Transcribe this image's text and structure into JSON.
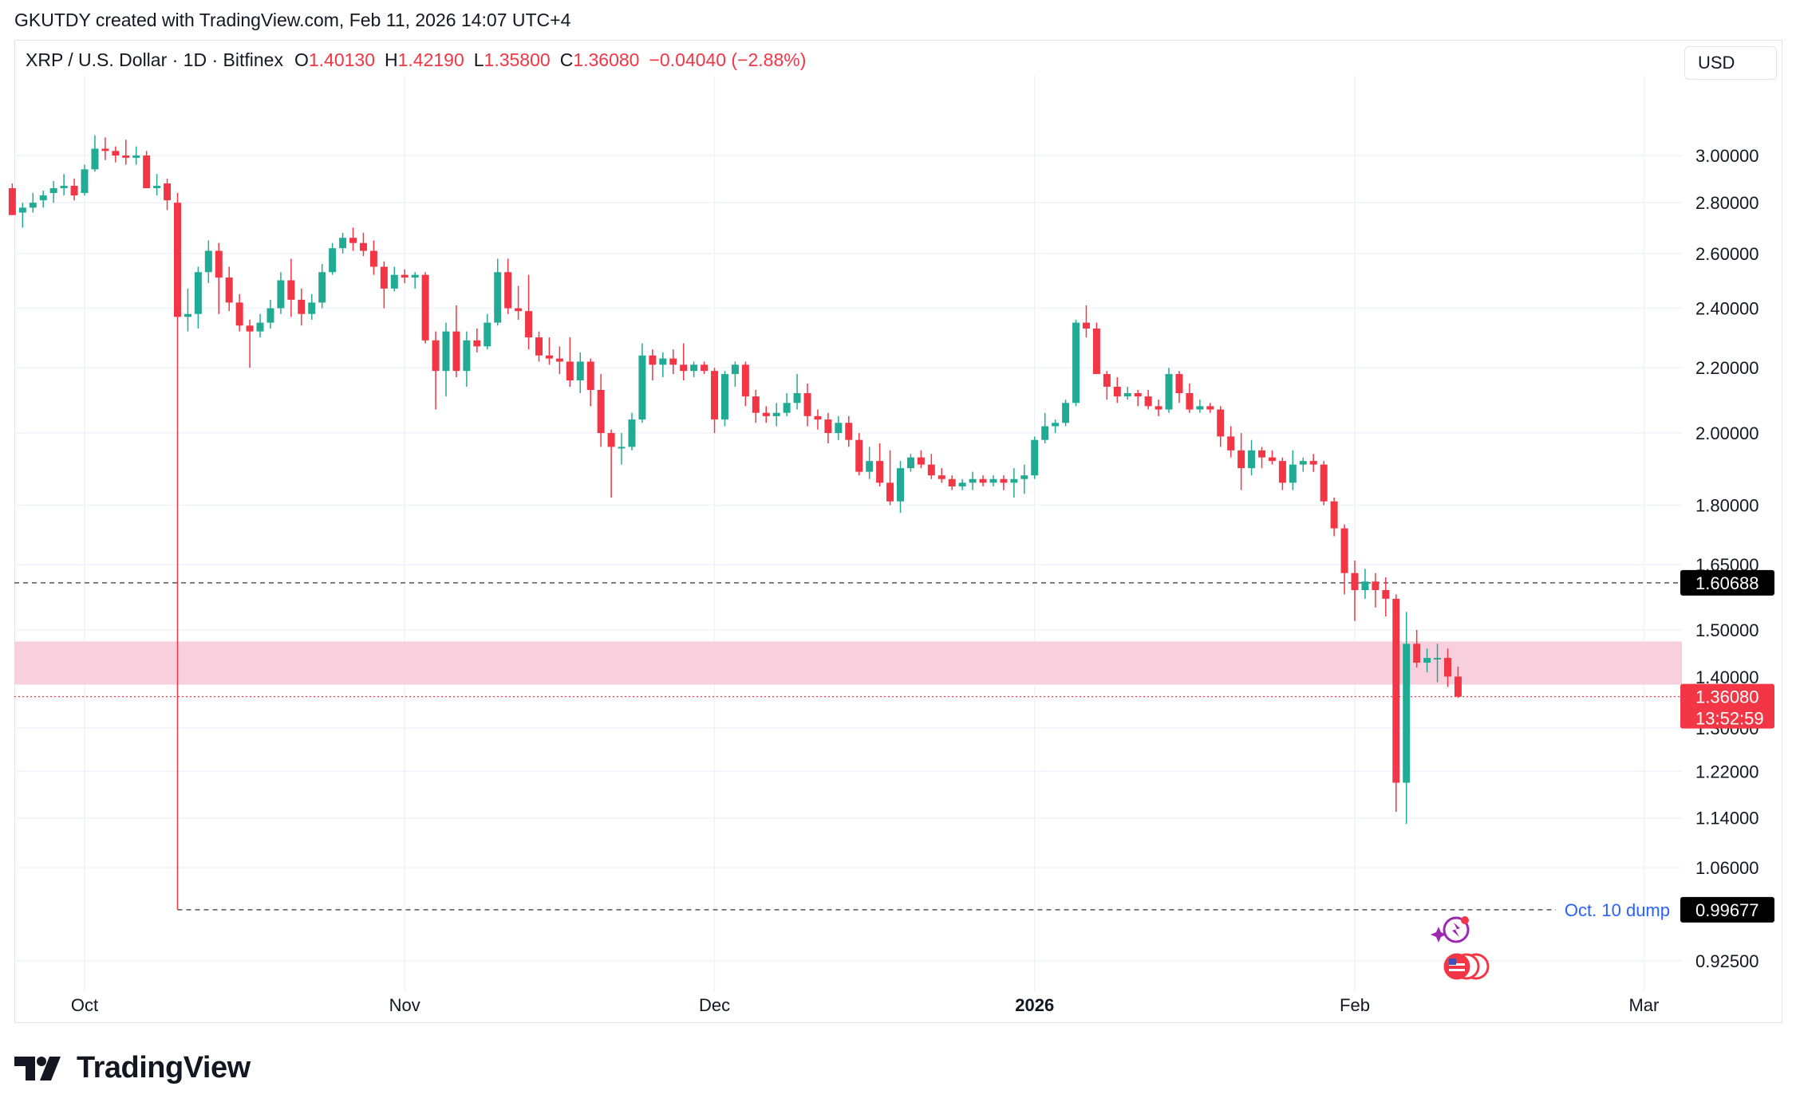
{
  "header": {
    "text": "GKUTDY created with TradingView.com, Feb 11, 2026 14:07 UTC+4"
  },
  "legend": {
    "symbol": "XRP / U.S. Dollar · 1D · Bitfinex",
    "open_label": "O",
    "open": "1.40130",
    "high_label": "H",
    "high": "1.42190",
    "low_label": "L",
    "low": "1.35800",
    "close_label": "C",
    "close": "1.36080",
    "change": "−0.04040 (−2.88%)"
  },
  "currency_button": "USD",
  "brand": {
    "name": "TradingView",
    "logo_icon": "tradingview-logo-icon"
  },
  "events_icons": [
    "sparkle-event-icon",
    "us-flag-economic-events-icon"
  ],
  "colors": {
    "up": "#22ab94",
    "down": "#f23645",
    "zone": "#f8cfdd",
    "grid": "#f0f3fa",
    "dashed": "#555555",
    "annotation": "#2962ff"
  },
  "chart_data": {
    "type": "candlestick",
    "scale": "log",
    "interval": "1D",
    "x_axis_labels": [
      "Oct",
      "Nov",
      "Dec",
      "2026",
      "Feb",
      "Mar"
    ],
    "y_axis_labels": [
      "3.00000",
      "2.80000",
      "2.60000",
      "2.40000",
      "2.20000",
      "2.00000",
      "1.80000",
      "1.65000",
      "1.50000",
      "1.40000",
      "1.30000",
      "1.22000",
      "1.14000",
      "1.06000",
      "0.92500"
    ],
    "y_range": [
      0.88,
      3.38
    ],
    "price_tags": [
      {
        "value": "1.60688",
        "style": "black"
      },
      {
        "value": "1.36080",
        "style": "red",
        "countdown": "13:52:59"
      },
      {
        "value": "0.99677",
        "style": "black"
      }
    ],
    "horizontal_lines": [
      {
        "value": 1.60688,
        "style": "dashed"
      },
      {
        "value": 1.3608,
        "style": "dotted-red"
      },
      {
        "value": 0.99677,
        "style": "dashed",
        "label": "Oct. 10 dump"
      }
    ],
    "zone": {
      "from": 1.385,
      "to": 1.475
    },
    "candles": [
      {
        "d": "2025-09-24",
        "o": 2.86,
        "h": 2.88,
        "l": 2.75,
        "c": 2.75
      },
      {
        "d": "2025-09-25",
        "o": 2.76,
        "h": 2.8,
        "l": 2.7,
        "c": 2.78
      },
      {
        "d": "2025-09-26",
        "o": 2.78,
        "h": 2.84,
        "l": 2.76,
        "c": 2.8
      },
      {
        "d": "2025-09-27",
        "o": 2.81,
        "h": 2.85,
        "l": 2.78,
        "c": 2.83
      },
      {
        "d": "2025-09-28",
        "o": 2.84,
        "h": 2.89,
        "l": 2.8,
        "c": 2.86
      },
      {
        "d": "2025-09-29",
        "o": 2.86,
        "h": 2.92,
        "l": 2.83,
        "c": 2.87
      },
      {
        "d": "2025-09-30",
        "o": 2.87,
        "h": 2.9,
        "l": 2.81,
        "c": 2.83
      },
      {
        "d": "2025-10-01",
        "o": 2.84,
        "h": 2.96,
        "l": 2.83,
        "c": 2.94
      },
      {
        "d": "2025-10-02",
        "o": 2.94,
        "h": 3.09,
        "l": 2.93,
        "c": 3.03
      },
      {
        "d": "2025-10-03",
        "o": 3.03,
        "h": 3.08,
        "l": 2.98,
        "c": 3.02
      },
      {
        "d": "2025-10-04",
        "o": 3.02,
        "h": 3.04,
        "l": 2.97,
        "c": 3.0
      },
      {
        "d": "2025-10-05",
        "o": 3.0,
        "h": 3.07,
        "l": 2.96,
        "c": 2.99
      },
      {
        "d": "2025-10-06",
        "o": 2.99,
        "h": 3.04,
        "l": 2.96,
        "c": 3.0
      },
      {
        "d": "2025-10-07",
        "o": 3.0,
        "h": 3.02,
        "l": 2.86,
        "c": 2.86
      },
      {
        "d": "2025-10-08",
        "o": 2.86,
        "h": 2.92,
        "l": 2.83,
        "c": 2.87
      },
      {
        "d": "2025-10-09",
        "o": 2.88,
        "h": 2.9,
        "l": 2.77,
        "c": 2.81
      },
      {
        "d": "2025-10-10",
        "o": 2.8,
        "h": 2.84,
        "l": 0.99677,
        "c": 2.37
      },
      {
        "d": "2025-10-11",
        "o": 2.37,
        "h": 2.47,
        "l": 2.32,
        "c": 2.38
      },
      {
        "d": "2025-10-12",
        "o": 2.38,
        "h": 2.55,
        "l": 2.33,
        "c": 2.53
      },
      {
        "d": "2025-10-13",
        "o": 2.53,
        "h": 2.65,
        "l": 2.49,
        "c": 2.61
      },
      {
        "d": "2025-10-14",
        "o": 2.61,
        "h": 2.64,
        "l": 2.38,
        "c": 2.51
      },
      {
        "d": "2025-10-15",
        "o": 2.51,
        "h": 2.55,
        "l": 2.39,
        "c": 2.42
      },
      {
        "d": "2025-10-16",
        "o": 2.42,
        "h": 2.45,
        "l": 2.32,
        "c": 2.34
      },
      {
        "d": "2025-10-17",
        "o": 2.34,
        "h": 2.36,
        "l": 2.2,
        "c": 2.32
      },
      {
        "d": "2025-10-18",
        "o": 2.32,
        "h": 2.38,
        "l": 2.3,
        "c": 2.35
      },
      {
        "d": "2025-10-19",
        "o": 2.35,
        "h": 2.43,
        "l": 2.33,
        "c": 2.4
      },
      {
        "d": "2025-10-20",
        "o": 2.4,
        "h": 2.53,
        "l": 2.38,
        "c": 2.5
      },
      {
        "d": "2025-10-21",
        "o": 2.5,
        "h": 2.58,
        "l": 2.37,
        "c": 2.43
      },
      {
        "d": "2025-10-22",
        "o": 2.43,
        "h": 2.47,
        "l": 2.34,
        "c": 2.38
      },
      {
        "d": "2025-10-23",
        "o": 2.38,
        "h": 2.45,
        "l": 2.36,
        "c": 2.42
      },
      {
        "d": "2025-10-24",
        "o": 2.42,
        "h": 2.56,
        "l": 2.4,
        "c": 2.53
      },
      {
        "d": "2025-10-25",
        "o": 2.53,
        "h": 2.64,
        "l": 2.52,
        "c": 2.62
      },
      {
        "d": "2025-10-26",
        "o": 2.62,
        "h": 2.68,
        "l": 2.6,
        "c": 2.66
      },
      {
        "d": "2025-10-27",
        "o": 2.66,
        "h": 2.7,
        "l": 2.61,
        "c": 2.64
      },
      {
        "d": "2025-10-28",
        "o": 2.64,
        "h": 2.68,
        "l": 2.59,
        "c": 2.61
      },
      {
        "d": "2025-10-29",
        "o": 2.61,
        "h": 2.65,
        "l": 2.52,
        "c": 2.55
      },
      {
        "d": "2025-10-30",
        "o": 2.55,
        "h": 2.57,
        "l": 2.4,
        "c": 2.47
      },
      {
        "d": "2025-10-31",
        "o": 2.47,
        "h": 2.55,
        "l": 2.46,
        "c": 2.52
      },
      {
        "d": "2025-11-01",
        "o": 2.52,
        "h": 2.54,
        "l": 2.49,
        "c": 2.51
      },
      {
        "d": "2025-11-02",
        "o": 2.51,
        "h": 2.53,
        "l": 2.47,
        "c": 2.52
      },
      {
        "d": "2025-11-03",
        "o": 2.52,
        "h": 2.53,
        "l": 2.28,
        "c": 2.29
      },
      {
        "d": "2025-11-04",
        "o": 2.29,
        "h": 2.32,
        "l": 2.07,
        "c": 2.19
      },
      {
        "d": "2025-11-05",
        "o": 2.19,
        "h": 2.35,
        "l": 2.11,
        "c": 2.32
      },
      {
        "d": "2025-11-06",
        "o": 2.32,
        "h": 2.41,
        "l": 2.17,
        "c": 2.19
      },
      {
        "d": "2025-11-07",
        "o": 2.19,
        "h": 2.32,
        "l": 2.14,
        "c": 2.29
      },
      {
        "d": "2025-11-08",
        "o": 2.29,
        "h": 2.33,
        "l": 2.25,
        "c": 2.27
      },
      {
        "d": "2025-11-09",
        "o": 2.27,
        "h": 2.38,
        "l": 2.26,
        "c": 2.35
      },
      {
        "d": "2025-11-10",
        "o": 2.35,
        "h": 2.58,
        "l": 2.34,
        "c": 2.53
      },
      {
        "d": "2025-11-11",
        "o": 2.53,
        "h": 2.58,
        "l": 2.38,
        "c": 2.4
      },
      {
        "d": "2025-11-12",
        "o": 2.4,
        "h": 2.48,
        "l": 2.36,
        "c": 2.39
      },
      {
        "d": "2025-11-13",
        "o": 2.39,
        "h": 2.52,
        "l": 2.26,
        "c": 2.3
      },
      {
        "d": "2025-11-14",
        "o": 2.3,
        "h": 2.32,
        "l": 2.22,
        "c": 2.24
      },
      {
        "d": "2025-11-15",
        "o": 2.24,
        "h": 2.3,
        "l": 2.21,
        "c": 2.23
      },
      {
        "d": "2025-11-16",
        "o": 2.23,
        "h": 2.27,
        "l": 2.18,
        "c": 2.22
      },
      {
        "d": "2025-11-17",
        "o": 2.22,
        "h": 2.3,
        "l": 2.14,
        "c": 2.16
      },
      {
        "d": "2025-11-18",
        "o": 2.16,
        "h": 2.25,
        "l": 2.12,
        "c": 2.22
      },
      {
        "d": "2025-11-19",
        "o": 2.22,
        "h": 2.23,
        "l": 2.08,
        "c": 2.13
      },
      {
        "d": "2025-11-20",
        "o": 2.13,
        "h": 2.18,
        "l": 1.96,
        "c": 2.0
      },
      {
        "d": "2025-11-21",
        "o": 2.0,
        "h": 2.01,
        "l": 1.82,
        "c": 1.96
      },
      {
        "d": "2025-11-22",
        "o": 1.96,
        "h": 2.0,
        "l": 1.91,
        "c": 1.96
      },
      {
        "d": "2025-11-23",
        "o": 1.96,
        "h": 2.06,
        "l": 1.95,
        "c": 2.04
      },
      {
        "d": "2025-11-24",
        "o": 2.04,
        "h": 2.28,
        "l": 2.03,
        "c": 2.24
      },
      {
        "d": "2025-11-25",
        "o": 2.24,
        "h": 2.26,
        "l": 2.16,
        "c": 2.21
      },
      {
        "d": "2025-11-26",
        "o": 2.21,
        "h": 2.25,
        "l": 2.17,
        "c": 2.23
      },
      {
        "d": "2025-11-27",
        "o": 2.23,
        "h": 2.26,
        "l": 2.18,
        "c": 2.21
      },
      {
        "d": "2025-11-28",
        "o": 2.21,
        "h": 2.28,
        "l": 2.16,
        "c": 2.19
      },
      {
        "d": "2025-11-29",
        "o": 2.19,
        "h": 2.22,
        "l": 2.17,
        "c": 2.21
      },
      {
        "d": "2025-11-30",
        "o": 2.21,
        "h": 2.22,
        "l": 2.18,
        "c": 2.19
      },
      {
        "d": "2025-12-01",
        "o": 2.19,
        "h": 2.2,
        "l": 2.0,
        "c": 2.04
      },
      {
        "d": "2025-12-02",
        "o": 2.04,
        "h": 2.19,
        "l": 2.02,
        "c": 2.18
      },
      {
        "d": "2025-12-03",
        "o": 2.18,
        "h": 2.22,
        "l": 2.14,
        "c": 2.21
      },
      {
        "d": "2025-12-04",
        "o": 2.21,
        "h": 2.22,
        "l": 2.08,
        "c": 2.11
      },
      {
        "d": "2025-12-05",
        "o": 2.11,
        "h": 2.13,
        "l": 2.03,
        "c": 2.06
      },
      {
        "d": "2025-12-06",
        "o": 2.06,
        "h": 2.08,
        "l": 2.03,
        "c": 2.05
      },
      {
        "d": "2025-12-07",
        "o": 2.05,
        "h": 2.09,
        "l": 2.02,
        "c": 2.06
      },
      {
        "d": "2025-12-08",
        "o": 2.06,
        "h": 2.12,
        "l": 2.05,
        "c": 2.09
      },
      {
        "d": "2025-12-09",
        "o": 2.09,
        "h": 2.18,
        "l": 2.07,
        "c": 2.12
      },
      {
        "d": "2025-12-10",
        "o": 2.12,
        "h": 2.15,
        "l": 2.02,
        "c": 2.05
      },
      {
        "d": "2025-12-11",
        "o": 2.05,
        "h": 2.07,
        "l": 2.01,
        "c": 2.04
      },
      {
        "d": "2025-12-12",
        "o": 2.04,
        "h": 2.06,
        "l": 1.97,
        "c": 2.0
      },
      {
        "d": "2025-12-13",
        "o": 2.0,
        "h": 2.05,
        "l": 1.98,
        "c": 2.03
      },
      {
        "d": "2025-12-14",
        "o": 2.03,
        "h": 2.05,
        "l": 1.96,
        "c": 1.98
      },
      {
        "d": "2025-12-15",
        "o": 1.98,
        "h": 2.0,
        "l": 1.88,
        "c": 1.89
      },
      {
        "d": "2025-12-16",
        "o": 1.89,
        "h": 1.96,
        "l": 1.87,
        "c": 1.92
      },
      {
        "d": "2025-12-17",
        "o": 1.92,
        "h": 1.97,
        "l": 1.85,
        "c": 1.86
      },
      {
        "d": "2025-12-18",
        "o": 1.86,
        "h": 1.95,
        "l": 1.8,
        "c": 1.81
      },
      {
        "d": "2025-12-19",
        "o": 1.81,
        "h": 1.92,
        "l": 1.78,
        "c": 1.9
      },
      {
        "d": "2025-12-20",
        "o": 1.9,
        "h": 1.94,
        "l": 1.89,
        "c": 1.93
      },
      {
        "d": "2025-12-21",
        "o": 1.93,
        "h": 1.95,
        "l": 1.9,
        "c": 1.91
      },
      {
        "d": "2025-12-22",
        "o": 1.91,
        "h": 1.94,
        "l": 1.87,
        "c": 1.88
      },
      {
        "d": "2025-12-23",
        "o": 1.88,
        "h": 1.9,
        "l": 1.86,
        "c": 1.87
      },
      {
        "d": "2025-12-24",
        "o": 1.87,
        "h": 1.88,
        "l": 1.84,
        "c": 1.85
      },
      {
        "d": "2025-12-25",
        "o": 1.85,
        "h": 1.87,
        "l": 1.84,
        "c": 1.86
      },
      {
        "d": "2025-12-26",
        "o": 1.86,
        "h": 1.89,
        "l": 1.84,
        "c": 1.87
      },
      {
        "d": "2025-12-27",
        "o": 1.87,
        "h": 1.88,
        "l": 1.85,
        "c": 1.86
      },
      {
        "d": "2025-12-28",
        "o": 1.86,
        "h": 1.88,
        "l": 1.85,
        "c": 1.87
      },
      {
        "d": "2025-12-29",
        "o": 1.87,
        "h": 1.88,
        "l": 1.84,
        "c": 1.86
      },
      {
        "d": "2025-12-30",
        "o": 1.86,
        "h": 1.9,
        "l": 1.82,
        "c": 1.87
      },
      {
        "d": "2025-12-31",
        "o": 1.87,
        "h": 1.91,
        "l": 1.83,
        "c": 1.88
      },
      {
        "d": "2026-01-01",
        "o": 1.88,
        "h": 1.99,
        "l": 1.87,
        "c": 1.98
      },
      {
        "d": "2026-01-02",
        "o": 1.98,
        "h": 2.06,
        "l": 1.97,
        "c": 2.02
      },
      {
        "d": "2026-01-03",
        "o": 2.02,
        "h": 2.04,
        "l": 2.0,
        "c": 2.03
      },
      {
        "d": "2026-01-04",
        "o": 2.03,
        "h": 2.1,
        "l": 2.02,
        "c": 2.09
      },
      {
        "d": "2026-01-05",
        "o": 2.09,
        "h": 2.36,
        "l": 2.08,
        "c": 2.35
      },
      {
        "d": "2026-01-06",
        "o": 2.35,
        "h": 2.41,
        "l": 2.3,
        "c": 2.33
      },
      {
        "d": "2026-01-07",
        "o": 2.33,
        "h": 2.35,
        "l": 2.19,
        "c": 2.18
      },
      {
        "d": "2026-01-08",
        "o": 2.18,
        "h": 2.19,
        "l": 2.1,
        "c": 2.14
      },
      {
        "d": "2026-01-09",
        "o": 2.14,
        "h": 2.17,
        "l": 2.09,
        "c": 2.11
      },
      {
        "d": "2026-01-10",
        "o": 2.11,
        "h": 2.14,
        "l": 2.1,
        "c": 2.12
      },
      {
        "d": "2026-01-11",
        "o": 2.12,
        "h": 2.13,
        "l": 2.08,
        "c": 2.11
      },
      {
        "d": "2026-01-12",
        "o": 2.11,
        "h": 2.13,
        "l": 2.07,
        "c": 2.08
      },
      {
        "d": "2026-01-13",
        "o": 2.08,
        "h": 2.1,
        "l": 2.05,
        "c": 2.07
      },
      {
        "d": "2026-01-14",
        "o": 2.07,
        "h": 2.2,
        "l": 2.06,
        "c": 2.18
      },
      {
        "d": "2026-01-15",
        "o": 2.18,
        "h": 2.19,
        "l": 2.09,
        "c": 2.12
      },
      {
        "d": "2026-01-16",
        "o": 2.12,
        "h": 2.15,
        "l": 2.06,
        "c": 2.07
      },
      {
        "d": "2026-01-17",
        "o": 2.07,
        "h": 2.1,
        "l": 2.06,
        "c": 2.08
      },
      {
        "d": "2026-01-18",
        "o": 2.08,
        "h": 2.09,
        "l": 2.06,
        "c": 2.07
      },
      {
        "d": "2026-01-19",
        "o": 2.07,
        "h": 2.08,
        "l": 1.96,
        "c": 1.99
      },
      {
        "d": "2026-01-20",
        "o": 1.99,
        "h": 2.02,
        "l": 1.93,
        "c": 1.95
      },
      {
        "d": "2026-01-21",
        "o": 1.95,
        "h": 2.0,
        "l": 1.84,
        "c": 1.9
      },
      {
        "d": "2026-01-22",
        "o": 1.9,
        "h": 1.98,
        "l": 1.88,
        "c": 1.95
      },
      {
        "d": "2026-01-23",
        "o": 1.95,
        "h": 1.96,
        "l": 1.9,
        "c": 1.93
      },
      {
        "d": "2026-01-24",
        "o": 1.93,
        "h": 1.95,
        "l": 1.91,
        "c": 1.92
      },
      {
        "d": "2026-01-25",
        "o": 1.92,
        "h": 1.93,
        "l": 1.84,
        "c": 1.86
      },
      {
        "d": "2026-01-26",
        "o": 1.86,
        "h": 1.95,
        "l": 1.84,
        "c": 1.91
      },
      {
        "d": "2026-01-27",
        "o": 1.91,
        "h": 1.93,
        "l": 1.89,
        "c": 1.92
      },
      {
        "d": "2026-01-28",
        "o": 1.92,
        "h": 1.94,
        "l": 1.89,
        "c": 1.91
      },
      {
        "d": "2026-01-29",
        "o": 1.91,
        "h": 1.92,
        "l": 1.8,
        "c": 1.81
      },
      {
        "d": "2026-01-30",
        "o": 1.81,
        "h": 1.82,
        "l": 1.72,
        "c": 1.74
      },
      {
        "d": "2026-01-31",
        "o": 1.74,
        "h": 1.75,
        "l": 1.58,
        "c": 1.63
      },
      {
        "d": "2026-02-01",
        "o": 1.63,
        "h": 1.66,
        "l": 1.52,
        "c": 1.59
      },
      {
        "d": "2026-02-02",
        "o": 1.59,
        "h": 1.64,
        "l": 1.57,
        "c": 1.61
      },
      {
        "d": "2026-02-03",
        "o": 1.61,
        "h": 1.63,
        "l": 1.55,
        "c": 1.59
      },
      {
        "d": "2026-02-04",
        "o": 1.59,
        "h": 1.62,
        "l": 1.53,
        "c": 1.57
      },
      {
        "d": "2026-02-05",
        "o": 1.57,
        "h": 1.58,
        "l": 1.15,
        "c": 1.2
      },
      {
        "d": "2026-02-06",
        "o": 1.2,
        "h": 1.54,
        "l": 1.13,
        "c": 1.47
      },
      {
        "d": "2026-02-07",
        "o": 1.47,
        "h": 1.5,
        "l": 1.42,
        "c": 1.43
      },
      {
        "d": "2026-02-08",
        "o": 1.43,
        "h": 1.46,
        "l": 1.41,
        "c": 1.44
      },
      {
        "d": "2026-02-09",
        "o": 1.44,
        "h": 1.47,
        "l": 1.39,
        "c": 1.44
      },
      {
        "d": "2026-02-10",
        "o": 1.44,
        "h": 1.46,
        "l": 1.38,
        "c": 1.4013
      },
      {
        "d": "2026-02-11",
        "o": 1.4013,
        "h": 1.4219,
        "l": 1.358,
        "c": 1.3608
      }
    ]
  }
}
